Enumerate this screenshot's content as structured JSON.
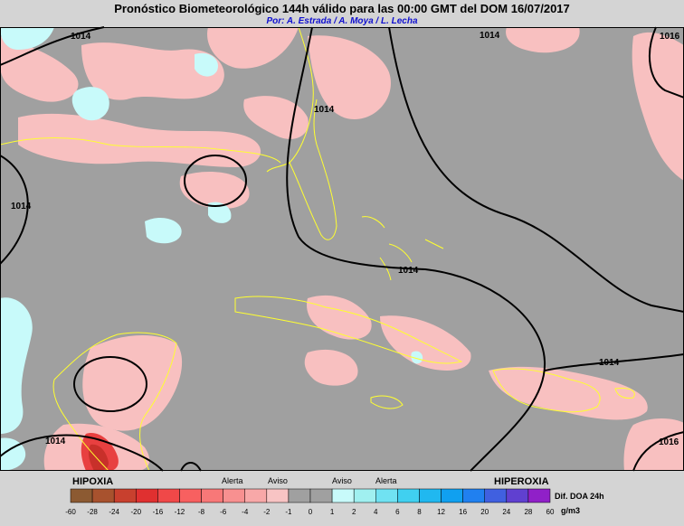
{
  "header": {
    "title": "Pronóstico Biometeorológico 144h  válido para las 00:00 GMT del DOM 16/07/2017",
    "subtitle": "Por: A. Estrada / A. Moya / L. Lecha"
  },
  "isobar_labels": [
    "1014",
    "1014",
    "1016",
    "1014",
    "1014",
    "1014",
    "1014",
    "1014",
    "1016"
  ],
  "legend": {
    "left_title": "HIPOXIA",
    "right_title": "HIPEROXIA",
    "left_alert": "Alerta",
    "left_warning": "Aviso",
    "right_warning": "Aviso",
    "right_alert": "Alerta",
    "variable": "Dif. DOA 24h",
    "unit": "g/m3"
  },
  "colorbar": {
    "ticks": [
      -60,
      -28,
      -24,
      -20,
      -16,
      -12,
      -8,
      -6,
      -4,
      -2,
      -1,
      0,
      1,
      2,
      4,
      6,
      8,
      12,
      16,
      20,
      24,
      28,
      60
    ],
    "colors": [
      "#8c5a32",
      "#a8522e",
      "#c8402e",
      "#e03030",
      "#f04848",
      "#f86060",
      "#f87878",
      "#f89090",
      "#f8a8a8",
      "#f8c4c4",
      "#a0a0a0",
      "#a0a0a0",
      "#c8fafa",
      "#a0f0f0",
      "#70e2f2",
      "#40d0f0",
      "#20b8f0",
      "#10a0f0",
      "#2080f0",
      "#4060e0",
      "#6040d0",
      "#9020c8"
    ]
  }
}
